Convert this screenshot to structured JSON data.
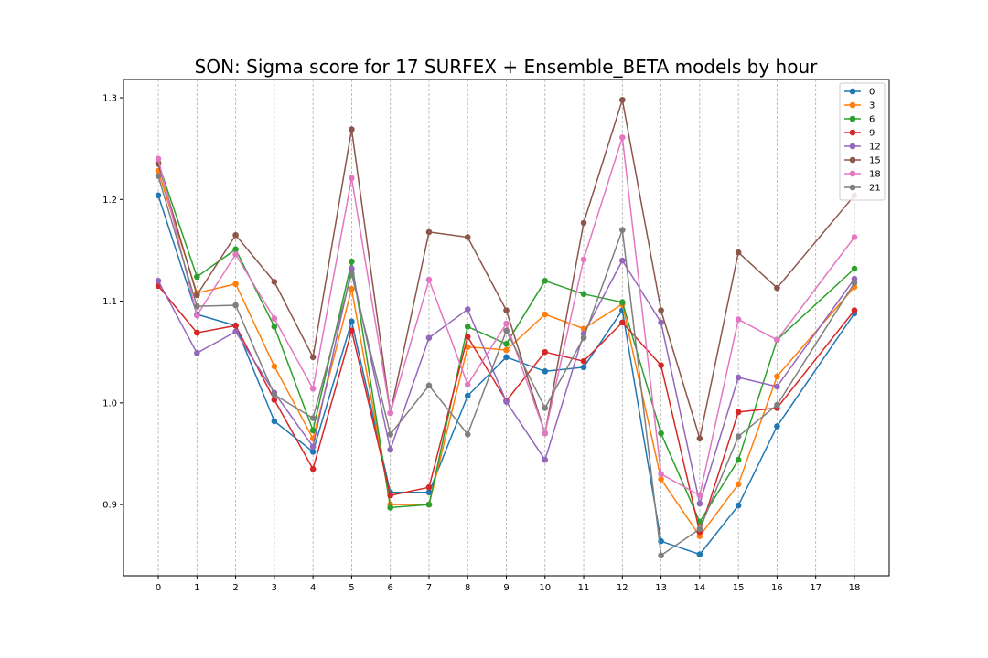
{
  "chart_data": {
    "type": "line",
    "title": "SON: Sigma score for 17 SURFEX + Ensemble_BETA models by hour",
    "xlabel": "",
    "ylabel": "",
    "x_ticks": [
      "0",
      "1",
      "2",
      "3",
      "4",
      "5",
      "6",
      "7",
      "8",
      "9",
      "10",
      "11",
      "12",
      "13",
      "14",
      "15",
      "16",
      "17",
      "18"
    ],
    "y_ticks": [
      "0.9",
      "1.0",
      "1.1",
      "1.2",
      "1.3"
    ],
    "ylim": [
      0.83,
      1.318
    ],
    "xlim": [
      -0.9,
      18.9
    ],
    "grid": "vertical dashed lines at x ticks",
    "legend_placement": "top-right",
    "series": [
      {
        "name": "0",
        "color": "#1f77b4",
        "points": [
          [
            0,
            1.204
          ],
          [
            1,
            1.087
          ],
          [
            2,
            1.076
          ],
          [
            3,
            0.982
          ],
          [
            4,
            0.952
          ],
          [
            5,
            1.08
          ],
          [
            6,
            0.912
          ],
          [
            7,
            0.912
          ],
          [
            8,
            1.007
          ],
          [
            9,
            1.045
          ],
          [
            10,
            1.031
          ],
          [
            11,
            1.035
          ],
          [
            12,
            1.091
          ],
          [
            13,
            0.864
          ],
          [
            14,
            0.851
          ],
          [
            15,
            0.899
          ],
          [
            16,
            0.977
          ],
          [
            18,
            1.088
          ]
        ]
      },
      {
        "name": "3",
        "color": "#ff7f0e",
        "points": [
          [
            0,
            1.228
          ],
          [
            1,
            1.108
          ],
          [
            2,
            1.117
          ],
          [
            3,
            1.036
          ],
          [
            4,
            0.965
          ],
          [
            5,
            1.112
          ],
          [
            6,
            0.9
          ],
          [
            7,
            0.9
          ],
          [
            8,
            1.055
          ],
          [
            9,
            1.052
          ],
          [
            10,
            1.087
          ],
          [
            11,
            1.073
          ],
          [
            12,
            1.097
          ],
          [
            13,
            0.925
          ],
          [
            14,
            0.869
          ],
          [
            15,
            0.92
          ],
          [
            16,
            1.026
          ],
          [
            18,
            1.114
          ]
        ]
      },
      {
        "name": "6",
        "color": "#2ca02c",
        "points": [
          [
            0,
            1.236
          ],
          [
            1,
            1.124
          ],
          [
            2,
            1.151
          ],
          [
            3,
            1.075
          ],
          [
            4,
            0.973
          ],
          [
            5,
            1.139
          ],
          [
            6,
            0.897
          ],
          [
            7,
            0.9
          ],
          [
            8,
            1.075
          ],
          [
            9,
            1.058
          ],
          [
            10,
            1.12
          ],
          [
            11,
            1.107
          ],
          [
            12,
            1.099
          ],
          [
            13,
            0.97
          ],
          [
            14,
            0.883
          ],
          [
            15,
            0.944
          ],
          [
            16,
            1.062
          ],
          [
            18,
            1.132
          ]
        ]
      },
      {
        "name": "9",
        "color": "#d62728",
        "points": [
          [
            0,
            1.115
          ],
          [
            1,
            1.069
          ],
          [
            2,
            1.076
          ],
          [
            3,
            1.003
          ],
          [
            4,
            0.935
          ],
          [
            5,
            1.071
          ],
          [
            6,
            0.909
          ],
          [
            7,
            0.917
          ],
          [
            8,
            1.065
          ],
          [
            9,
            1.002
          ],
          [
            10,
            1.05
          ],
          [
            11,
            1.041
          ],
          [
            12,
            1.079
          ],
          [
            13,
            1.037
          ],
          [
            14,
            0.873
          ],
          [
            15,
            0.991
          ],
          [
            16,
            0.995
          ],
          [
            18,
            1.091
          ]
        ]
      },
      {
        "name": "12",
        "color": "#9467bd",
        "points": [
          [
            0,
            1.12
          ],
          [
            1,
            1.049
          ],
          [
            2,
            1.07
          ],
          [
            3,
            1.01
          ],
          [
            4,
            0.957
          ],
          [
            5,
            1.132
          ],
          [
            6,
            0.954
          ],
          [
            7,
            1.064
          ],
          [
            8,
            1.092
          ],
          [
            9,
            1.001
          ],
          [
            10,
            0.944
          ],
          [
            11,
            1.068
          ],
          [
            12,
            1.14
          ],
          [
            13,
            1.079
          ],
          [
            14,
            0.901
          ],
          [
            15,
            1.025
          ],
          [
            16,
            1.016
          ],
          [
            18,
            1.122
          ]
        ]
      },
      {
        "name": "15",
        "color": "#8c564b",
        "points": [
          [
            0,
            1.235
          ],
          [
            1,
            1.106
          ],
          [
            2,
            1.165
          ],
          [
            3,
            1.119
          ],
          [
            4,
            1.045
          ],
          [
            5,
            1.269
          ],
          [
            6,
            0.99
          ],
          [
            7,
            1.168
          ],
          [
            8,
            1.163
          ],
          [
            9,
            1.091
          ],
          [
            10,
            0.97
          ],
          [
            11,
            1.177
          ],
          [
            12,
            1.298
          ],
          [
            13,
            1.091
          ],
          [
            14,
            0.965
          ],
          [
            15,
            1.148
          ],
          [
            16,
            1.113
          ],
          [
            18,
            1.204
          ]
        ]
      },
      {
        "name": "18",
        "color": "#e377c2",
        "points": [
          [
            0,
            1.24
          ],
          [
            1,
            1.086
          ],
          [
            2,
            1.146
          ],
          [
            3,
            1.083
          ],
          [
            4,
            1.014
          ],
          [
            5,
            1.221
          ],
          [
            6,
            0.99
          ],
          [
            7,
            1.121
          ],
          [
            8,
            1.018
          ],
          [
            9,
            1.078
          ],
          [
            10,
            0.97
          ],
          [
            11,
            1.141
          ],
          [
            12,
            1.261
          ],
          [
            13,
            0.93
          ],
          [
            14,
            0.909
          ],
          [
            15,
            1.082
          ],
          [
            16,
            1.062
          ],
          [
            18,
            1.163
          ]
        ]
      },
      {
        "name": "21",
        "color": "#7f7f7f",
        "points": [
          [
            0,
            1.223
          ],
          [
            1,
            1.095
          ],
          [
            2,
            1.096
          ],
          [
            3,
            1.008
          ],
          [
            4,
            0.985
          ],
          [
            5,
            1.127
          ],
          [
            6,
            0.969
          ],
          [
            7,
            1.017
          ],
          [
            8,
            0.969
          ],
          [
            9,
            1.071
          ],
          [
            10,
            0.995
          ],
          [
            11,
            1.064
          ],
          [
            12,
            1.17
          ],
          [
            13,
            0.85
          ],
          [
            14,
            0.876
          ],
          [
            15,
            0.967
          ],
          [
            16,
            0.998
          ],
          [
            18,
            1.118
          ]
        ]
      }
    ]
  }
}
